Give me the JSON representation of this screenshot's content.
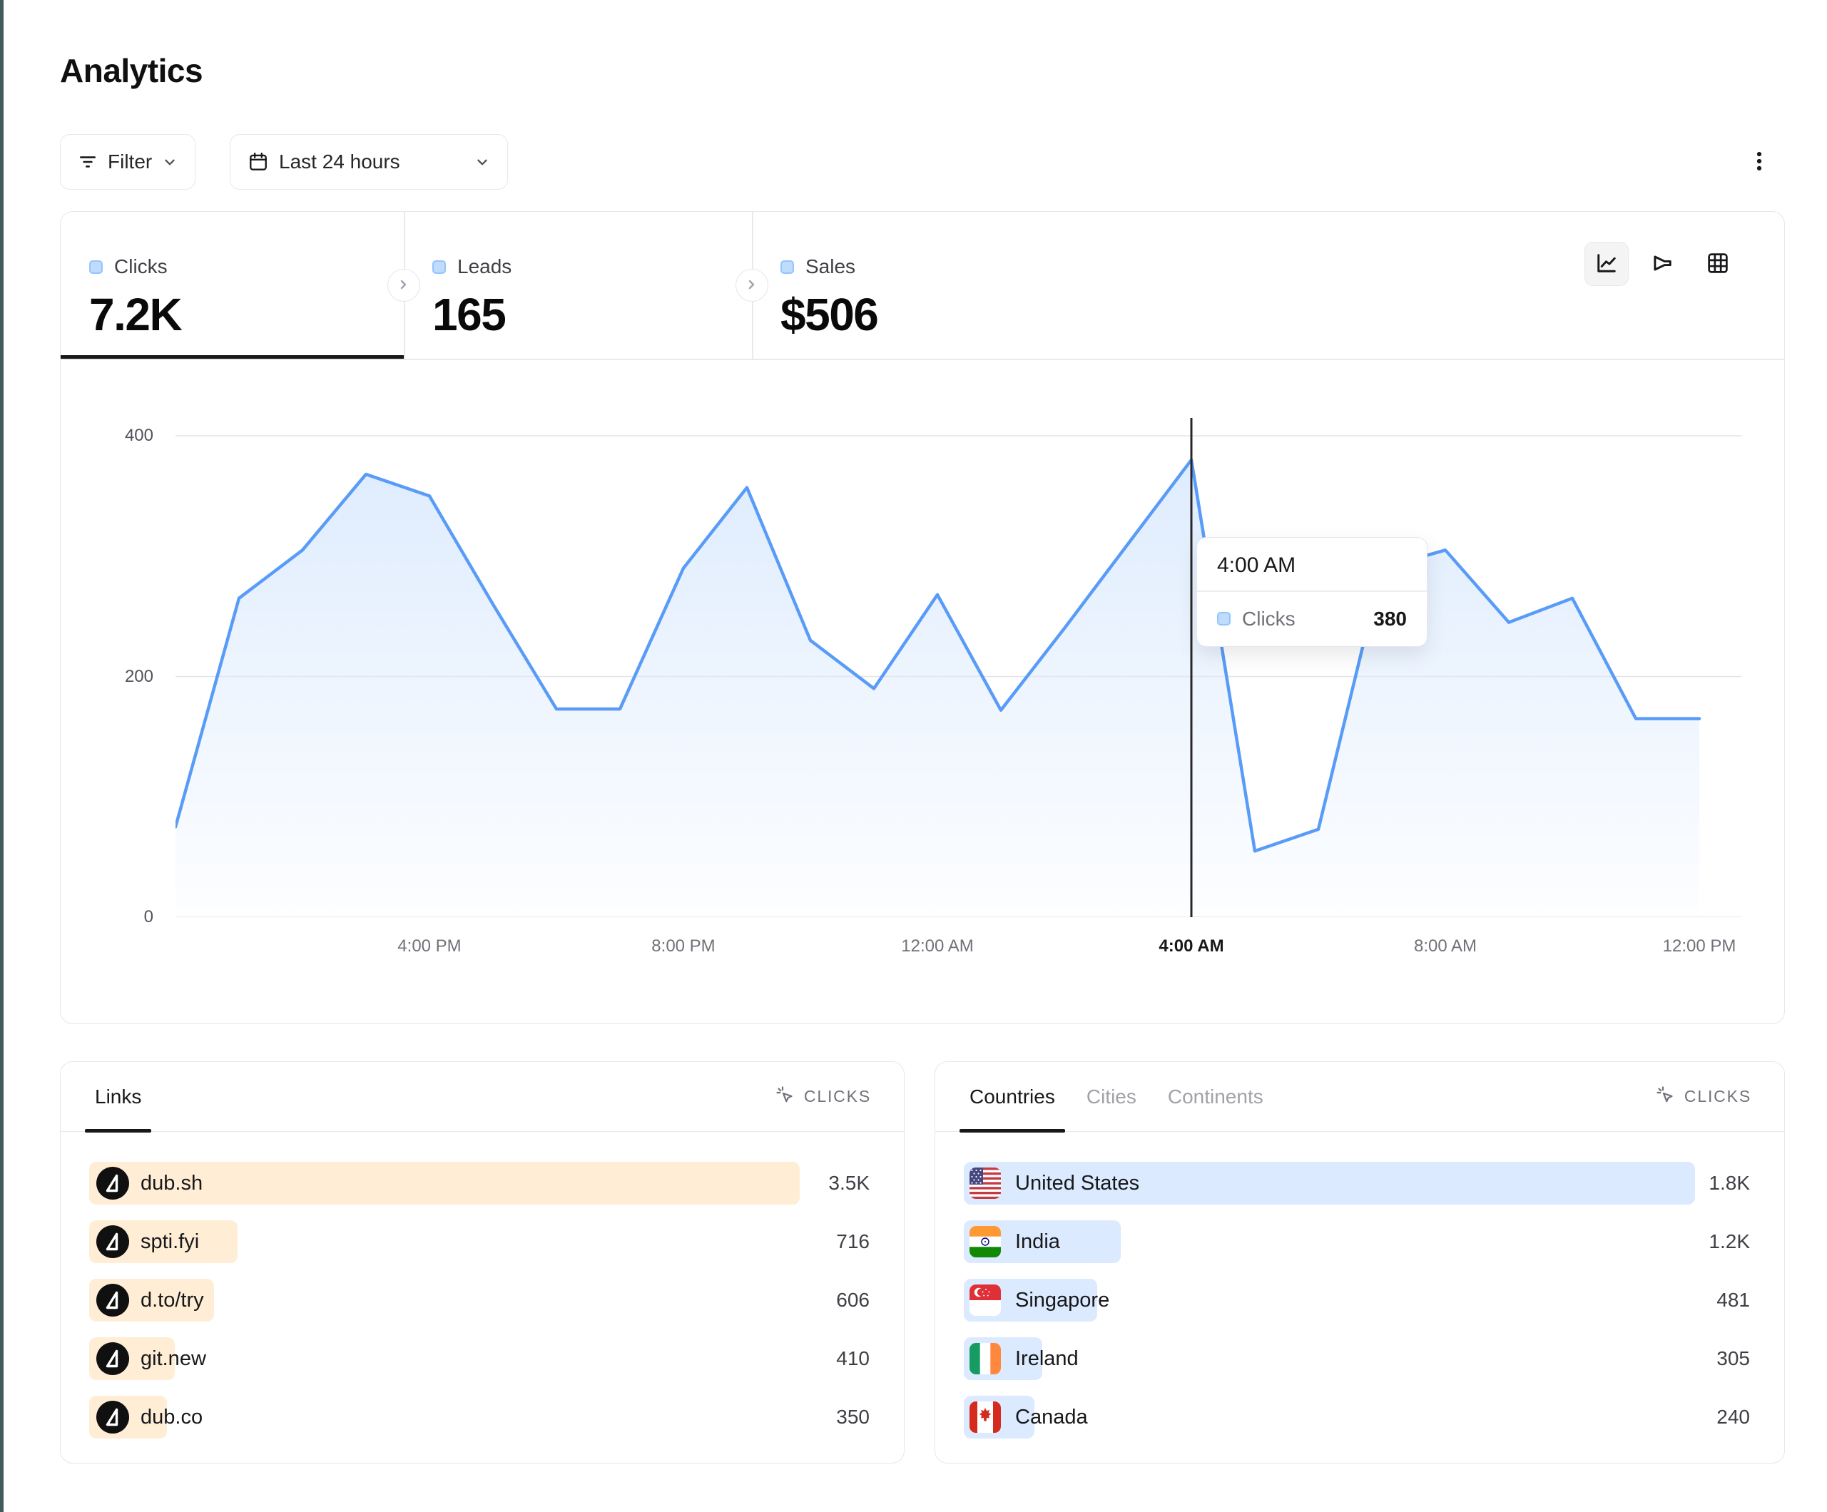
{
  "page": {
    "title": "Analytics"
  },
  "toolbar": {
    "filter_label": "Filter",
    "date_range_label": "Last 24 hours"
  },
  "stats": [
    {
      "label": "Clicks",
      "value": "7.2K",
      "active": true
    },
    {
      "label": "Leads",
      "value": "165",
      "active": false
    },
    {
      "label": "Sales",
      "value": "$506",
      "active": false
    }
  ],
  "chart_toolbar": {
    "icons": [
      "line-chart",
      "funnel-chart",
      "table-grid"
    ],
    "active": "line-chart"
  },
  "chart_data": {
    "type": "area",
    "series": [
      {
        "name": "Clicks",
        "values": [
          75,
          265,
          305,
          368,
          350,
          260,
          173,
          173,
          290,
          357,
          230,
          190,
          268,
          172,
          240,
          310,
          380,
          55,
          73,
          290,
          305,
          245,
          265,
          165,
          165
        ]
      }
    ],
    "x": [
      "12:00 PM",
      "1:00 PM",
      "2:00 PM",
      "3:00 PM",
      "4:00 PM",
      "5:00 PM",
      "6:00 PM",
      "7:00 PM",
      "8:00 PM",
      "9:00 PM",
      "10:00 PM",
      "11:00 PM",
      "12:00 AM",
      "1:00 AM",
      "2:00 AM",
      "3:00 AM",
      "4:00 AM",
      "5:00 AM",
      "6:00 AM",
      "7:00 AM",
      "8:00 AM",
      "9:00 AM",
      "10:00 AM",
      "11:00 AM",
      "12:00 PM"
    ],
    "xtick_labels": [
      "4:00 PM",
      "8:00 PM",
      "12:00 AM",
      "4:00 AM",
      "8:00 AM",
      "12:00 PM"
    ],
    "xtick_indices": [
      4,
      8,
      12,
      16,
      20,
      24
    ],
    "yticks": [
      0,
      200,
      400
    ],
    "ylim": [
      0,
      415
    ],
    "grid": "horizontal",
    "legend_position": "none",
    "line_color": "#599CF7",
    "area_color": "#DBEAFE",
    "crosshair_index": 16,
    "tooltip": {
      "title": "4:00 AM",
      "series_label": "Clicks",
      "value": "380"
    }
  },
  "links_panel": {
    "tab_label": "Links",
    "metric_label": "CLICKS",
    "bar_color": "#FFEDD5",
    "rows": [
      {
        "name": "dub.sh",
        "value": "3.5K",
        "bar_pct": 91
      },
      {
        "name": "spti.fyi",
        "value": "716",
        "bar_pct": 19
      },
      {
        "name": "d.to/try",
        "value": "606",
        "bar_pct": 16
      },
      {
        "name": "git.new",
        "value": "410",
        "bar_pct": 11
      },
      {
        "name": "dub.co",
        "value": "350",
        "bar_pct": 10
      }
    ]
  },
  "countries_panel": {
    "tabs": [
      "Countries",
      "Cities",
      "Continents"
    ],
    "active_tab": "Countries",
    "metric_label": "CLICKS",
    "bar_color": "#DBEAFE",
    "rows": [
      {
        "name": "United States",
        "value": "1.8K",
        "bar_pct": 93,
        "flag": "us"
      },
      {
        "name": "India",
        "value": "1.2K",
        "bar_pct": 20,
        "flag": "in"
      },
      {
        "name": "Singapore",
        "value": "481",
        "bar_pct": 17,
        "flag": "sg"
      },
      {
        "name": "Ireland",
        "value": "305",
        "bar_pct": 10,
        "flag": "ie"
      },
      {
        "name": "Canada",
        "value": "240",
        "bar_pct": 9,
        "flag": "ca"
      }
    ]
  },
  "icons": {
    "filter-icon": "three shrinking horizontal lines",
    "calendar-icon": "calendar outline",
    "chevron-down-icon": "chevron down",
    "more-menu-icon": "three vertical dots",
    "chevron-right-icon": "chevron right in circle",
    "line-chart-icon": "axes with zigzag line",
    "funnel-chart-icon": "sideways funnel",
    "table-grid-icon": "3x3 grid",
    "cursor-click-icon": "pointer with click rays",
    "dub-logo-icon": "white triangle in black circle"
  }
}
